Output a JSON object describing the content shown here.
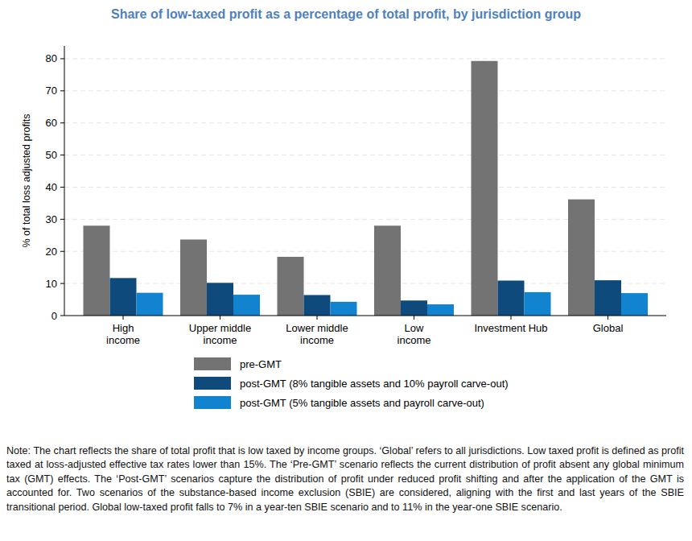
{
  "chart_data": {
    "type": "bar",
    "title": "Share of low-taxed profit as a percentage of total profit, by jurisdiction group",
    "y_label": "% of total loss adjusted profits",
    "categories": [
      "High\nincome",
      "Upper middle\nincome",
      "Lower middle\nincome",
      "Low\nincome",
      "Investment Hub",
      "Global"
    ],
    "series": [
      {
        "name": "pre-GMT",
        "color": "#737373",
        "values": [
          28,
          23.7,
          18.3,
          28,
          79.3,
          36.2
        ]
      },
      {
        "name": "post-GMT (8% tangible assets and 10% payroll carve-out)",
        "color": "#0e4a7c",
        "values": [
          11.7,
          10.2,
          6.4,
          4.7,
          10.9,
          11
        ]
      },
      {
        "name": "post-GMT (5% tangible assets and payroll carve-out)",
        "color": "#1283cf",
        "values": [
          7.1,
          6.5,
          4.3,
          3.5,
          7.3,
          7
        ]
      }
    ],
    "ylim": [
      0,
      84
    ],
    "yticks": [
      0,
      10,
      20,
      30,
      40,
      50,
      60,
      70,
      80
    ],
    "grid": true,
    "legend": "bottom",
    "note": "Note: The chart reflects the share of total profit that is low taxed by income groups. ‘Global’ refers to all jurisdictions. Low taxed profit is defined as profit taxed at loss-adjusted effective tax rates lower than 15%. The ‘Pre-GMT’ scenario reflects the current distribution of profit absent any global minimum tax (GMT) effects. The ‘Post-GMT’ scenarios capture the distribution of profit under reduced profit shifting and after the application of the GMT is accounted for. Two scenarios of the substance-based income exclusion (SBIE) are considered, aligning with the first and last years of the SBIE transitional period. Global low-taxed profit falls to 7% in a year-ten SBIE scenario and to 11% in the year-one SBIE scenario."
  }
}
